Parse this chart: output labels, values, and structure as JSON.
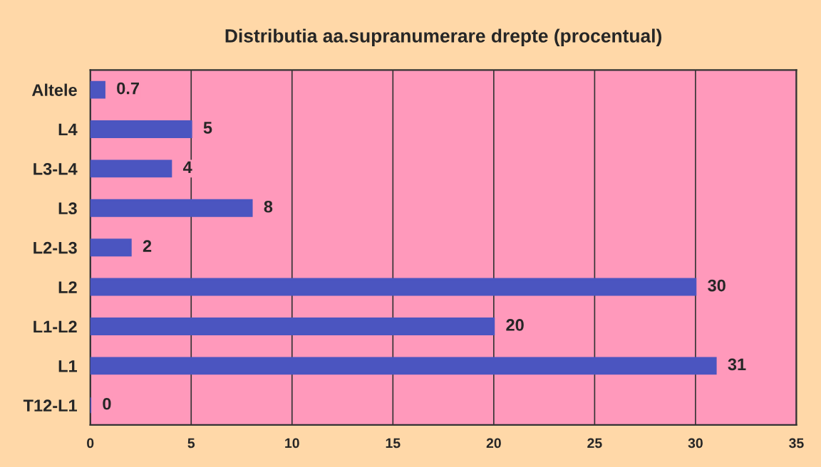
{
  "chart_data": {
    "type": "bar",
    "orientation": "horizontal",
    "title": "Distributia aa.supranumerare drepte (procentual)",
    "categories": [
      "Altele",
      "L4",
      "L3-L4",
      "L3",
      "L2-L3",
      "L2",
      "L1-L2",
      "L1",
      "T12-L1"
    ],
    "values": [
      0.7,
      5,
      4,
      8,
      2,
      30,
      20,
      31,
      0
    ],
    "color": "#4b55c0",
    "xlim": [
      0,
      35
    ],
    "xticks": [
      0,
      5,
      10,
      15,
      20,
      25,
      30,
      35
    ],
    "grid": "x",
    "data_labels": true
  }
}
